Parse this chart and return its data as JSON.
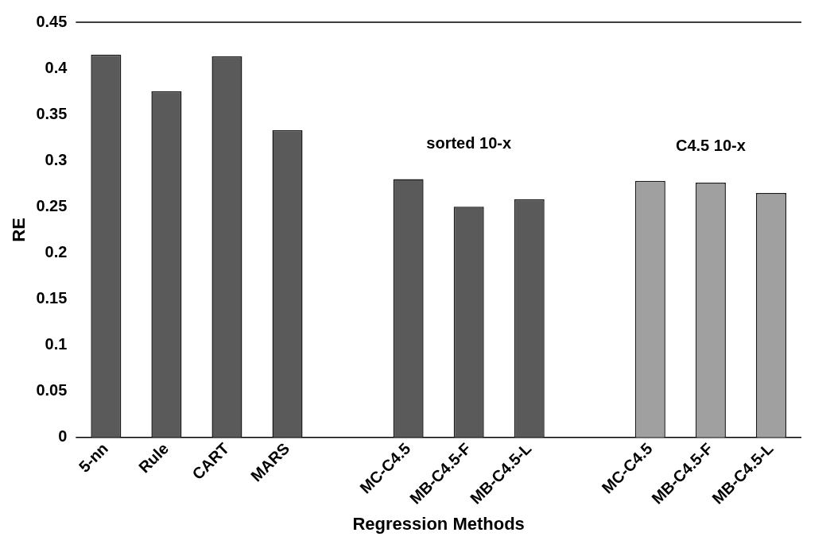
{
  "chart_data": {
    "type": "bar",
    "xlabel": "Regression Methods",
    "ylabel": "RE",
    "categories": [
      "5-nn",
      "Rule",
      "CART",
      "MARS",
      null,
      "MC-C4.5",
      "MB-C4.5-F",
      "MB-C4.5-L",
      null,
      "MC-C4.5",
      "MB-C4.5-F",
      "MB-C4.5-L"
    ],
    "values": [
      0.415,
      0.375,
      0.413,
      0.333,
      null,
      0.28,
      0.25,
      0.258,
      null,
      0.278,
      0.276,
      0.265
    ],
    "colors": [
      "#5a5a5a",
      "#5a5a5a",
      "#5a5a5a",
      "#5a5a5a",
      "#5a5a5a",
      "#5a5a5a",
      "#5a5a5a",
      "#5a5a5a",
      "#a0a0a0",
      "#a0a0a0",
      "#a0a0a0",
      "#a0a0a0"
    ],
    "ylim": [
      0,
      0.45
    ],
    "yticks": [
      0,
      0.05,
      0.1,
      0.15,
      0.2,
      0.25,
      0.3,
      0.35,
      0.4,
      0.45
    ],
    "annotations": [
      "sorted 10-x",
      "C4.5 10-x"
    ],
    "grid": false,
    "legend": false
  }
}
